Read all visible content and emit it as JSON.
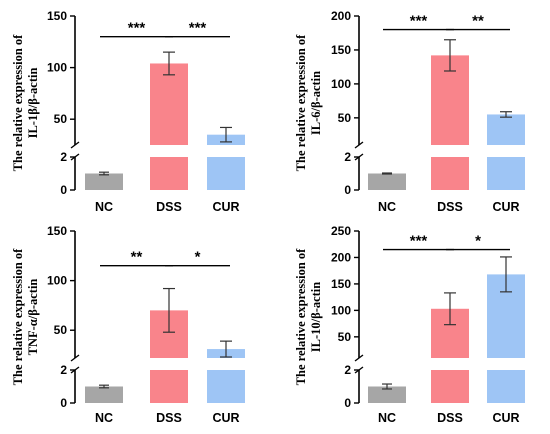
{
  "chart_data": [
    {
      "type": "bar",
      "ylabel_line1": "The relative expression of",
      "ylabel_line2": "IL-1β/β-actin",
      "categories": [
        "NC",
        "DSS",
        "CUR"
      ],
      "values": [
        1.0,
        104,
        35
      ],
      "errors": [
        0.08,
        11,
        7
      ],
      "upper_ylim": [
        25,
        150
      ],
      "upper_ticks": [
        "50",
        "100",
        "150"
      ],
      "lower_ylim": [
        0,
        2
      ],
      "lower_ticks": [
        "0",
        "2"
      ],
      "colors": [
        "#a6a6a6",
        "#f9848b",
        "#9ec5f5"
      ],
      "significance": [
        {
          "from": 0,
          "to": 1,
          "label": "***",
          "y": 130
        },
        {
          "from": 1,
          "to": 2,
          "label": "***",
          "y": 130
        }
      ]
    },
    {
      "type": "bar",
      "ylabel_line1": "The relative expression of",
      "ylabel_line2": "IL-6/β-actin",
      "categories": [
        "NC",
        "DSS",
        "CUR"
      ],
      "values": [
        1.0,
        142,
        55
      ],
      "errors": [
        0.03,
        23,
        4
      ],
      "upper_ylim": [
        10,
        200
      ],
      "upper_ticks": [
        "50",
        "100",
        "150",
        "200"
      ],
      "lower_ylim": [
        0,
        2
      ],
      "lower_ticks": [
        "0",
        "2"
      ],
      "colors": [
        "#a6a6a6",
        "#f9848b",
        "#9ec5f5"
      ],
      "significance": [
        {
          "from": 0,
          "to": 1,
          "label": "***",
          "y": 180
        },
        {
          "from": 1,
          "to": 2,
          "label": "**",
          "y": 180
        }
      ]
    },
    {
      "type": "bar",
      "ylabel_line1": "The relative expression of",
      "ylabel_line2": "TNF-α/β-actin",
      "categories": [
        "NC",
        "DSS",
        "CUR"
      ],
      "values": [
        1.0,
        70,
        31
      ],
      "errors": [
        0.08,
        22,
        8
      ],
      "upper_ylim": [
        22,
        150
      ],
      "upper_ticks": [
        "50",
        "100",
        "150"
      ],
      "lower_ylim": [
        0,
        2
      ],
      "lower_ticks": [
        "0",
        "2"
      ],
      "colors": [
        "#a6a6a6",
        "#f9848b",
        "#9ec5f5"
      ],
      "significance": [
        {
          "from": 0,
          "to": 1,
          "label": "**",
          "y": 115
        },
        {
          "from": 1,
          "to": 2,
          "label": "*",
          "y": 115
        }
      ]
    },
    {
      "type": "bar",
      "ylabel_line1": "The relative expression of",
      "ylabel_line2": "IL-10/β-actin",
      "categories": [
        "NC",
        "DSS",
        "CUR"
      ],
      "values": [
        1.0,
        103,
        168
      ],
      "errors": [
        0.15,
        30,
        33
      ],
      "upper_ylim": [
        10,
        250
      ],
      "upper_ticks": [
        "50",
        "100",
        "150",
        "200",
        "250"
      ],
      "lower_ylim": [
        0,
        2
      ],
      "lower_ticks": [
        "0",
        "2"
      ],
      "colors": [
        "#a6a6a6",
        "#f9848b",
        "#9ec5f5"
      ],
      "significance": [
        {
          "from": 0,
          "to": 1,
          "label": "***",
          "y": 215
        },
        {
          "from": 1,
          "to": 2,
          "label": "*",
          "y": 215
        }
      ]
    }
  ]
}
